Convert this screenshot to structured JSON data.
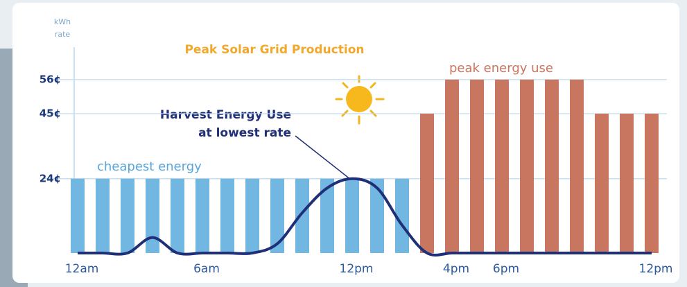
{
  "chart_data": {
    "type": "bar",
    "title": "Peak Solar Grid Production",
    "ylabel": [
      "kWh",
      "rate"
    ],
    "categories": [
      "12am",
      null,
      null,
      null,
      null,
      "6am",
      null,
      null,
      null,
      null,
      null,
      "12pm",
      null,
      null,
      null,
      "4pm",
      null,
      "6pm",
      null,
      null,
      null,
      null,
      null,
      "12pm"
    ],
    "values": [
      24,
      24,
      24,
      24,
      24,
      24,
      24,
      24,
      24,
      24,
      24,
      24,
      24,
      24,
      45,
      56,
      56,
      56,
      56,
      56,
      56,
      45,
      45,
      45
    ],
    "colors": [
      "#72b6e2",
      "#72b6e2",
      "#72b6e2",
      "#72b6e2",
      "#72b6e2",
      "#72b6e2",
      "#72b6e2",
      "#72b6e2",
      "#72b6e2",
      "#72b6e2",
      "#72b6e2",
      "#72b6e2",
      "#72b6e2",
      "#72b6e2",
      "#c8765f",
      "#c8765f",
      "#c8765f",
      "#c8765f",
      "#c8765f",
      "#c8765f",
      "#c8765f",
      "#c8765f",
      "#c8765f",
      "#c8765f"
    ],
    "ylim": [
      0,
      62
    ],
    "yticks": [
      {
        "value": 24,
        "label": "24¢"
      },
      {
        "value": 45,
        "label": "45¢"
      },
      {
        "value": 56,
        "label": "56¢"
      }
    ],
    "grid": true,
    "line": {
      "color": "#1f2f78",
      "values": [
        0,
        0,
        0,
        5,
        0,
        0,
        0,
        0,
        3,
        13,
        21,
        24,
        21,
        9,
        0,
        0,
        0,
        0,
        0,
        0,
        0,
        0,
        0,
        0
      ]
    },
    "annotations": {
      "cheap": "cheapest energy",
      "peak": "peak energy use",
      "harvest": [
        "Harvest Energy Use",
        "at lowest rate"
      ]
    }
  }
}
